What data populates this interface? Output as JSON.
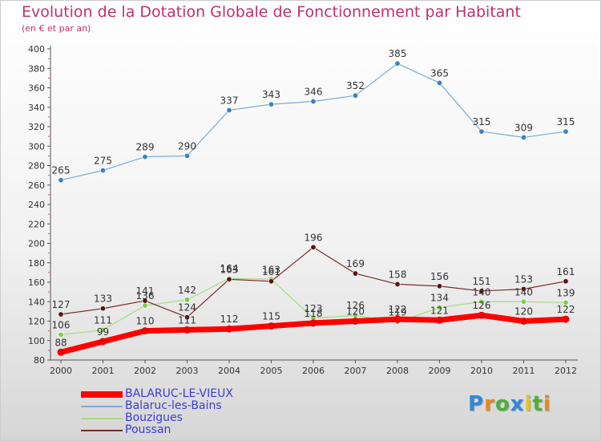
{
  "header": {
    "title": "Evolution de la Dotation Globale de Fonctionnement par Habitant",
    "subtitle": "(en € et par an)"
  },
  "logo": {
    "letters": [
      "P",
      "r",
      "o",
      "x",
      "i",
      "t",
      "i"
    ],
    "colors": [
      "#2f8ad6",
      "#e88a1a",
      "#4fb03a",
      "#2f8ad6",
      "#e8c41a",
      "#4fb03a",
      "#e88a1a"
    ]
  },
  "chart_data": {
    "type": "line",
    "title": "Evolution de la Dotation Globale de Fonctionnement par Habitant",
    "subtitle": "(en € et par an)",
    "x": [
      "2000",
      "2001",
      "2002",
      "2003",
      "2004",
      "2005",
      "2006",
      "2007",
      "2008",
      "2009",
      "2010",
      "2011",
      "2012"
    ],
    "ylim": [
      80,
      400
    ],
    "yticks": [
      80,
      100,
      120,
      140,
      160,
      180,
      200,
      220,
      240,
      260,
      280,
      300,
      320,
      340,
      360,
      380,
      400
    ],
    "grid": false,
    "legend_position": "bottom-left",
    "series": [
      {
        "name": "Balaruc-les-Bains",
        "color": "#78aad8",
        "marker": "#3b82c4",
        "width": 1.2,
        "values": [
          265,
          275,
          289,
          290,
          337,
          343,
          346,
          352,
          385,
          365,
          315,
          309,
          315
        ]
      },
      {
        "name": "Bouzigues",
        "color": "#a6dc82",
        "marker": "#7ccc44",
        "width": 1.2,
        "values": [
          106,
          111,
          136,
          142,
          164,
          163,
          123,
          126,
          119,
          134,
          140,
          140,
          139
        ]
      },
      {
        "name": "Poussan",
        "color": "#7a2a2a",
        "marker": "#5a1414",
        "width": 1.2,
        "values": [
          127,
          133,
          141,
          124,
          163,
          161,
          196,
          169,
          158,
          156,
          151,
          153,
          161
        ]
      },
      {
        "name": "BALARUC-LE-VIEUX",
        "color": "#ff0000",
        "marker": "#ee0000",
        "width": 7,
        "values": [
          88,
          99,
          110,
          111,
          112,
          115,
          118,
          120,
          122,
          121,
          126,
          120,
          122
        ]
      }
    ],
    "data_labels": [
      [
        265,
        275,
        289,
        290,
        337,
        343,
        346,
        352,
        385,
        365,
        315,
        309,
        315
      ],
      [
        106,
        111,
        136,
        142,
        164,
        163,
        123,
        126,
        119,
        134,
        140,
        140,
        139
      ],
      [
        127,
        133,
        141,
        124,
        163,
        161,
        196,
        169,
        158,
        156,
        151,
        153,
        161
      ],
      [
        88,
        99,
        110,
        111,
        112,
        115,
        118,
        120,
        122,
        121,
        126,
        120,
        122
      ]
    ],
    "legend_order": [
      "BALARUC-LE-VIEUX",
      "Balaruc-les-Bains",
      "Bouzigues",
      "Poussan"
    ]
  }
}
